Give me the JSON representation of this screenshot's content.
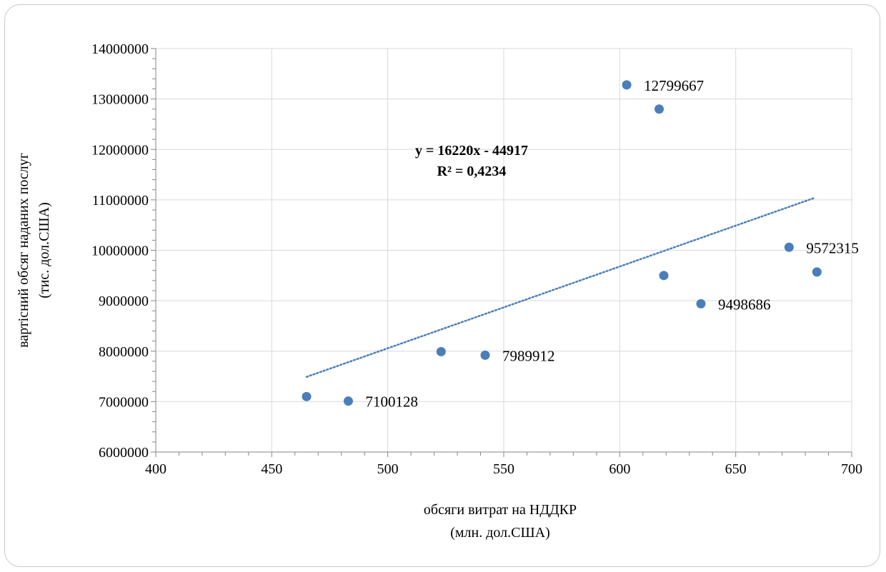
{
  "chart_data": {
    "type": "scatter",
    "title": "",
    "xlabel": [
      "обсяги витрат на НДДКР",
      "(млн. дол.США)"
    ],
    "ylabel": [
      "вартісний обсяг наданих послуг",
      "(тис. дол.США)"
    ],
    "xlim": [
      400,
      700
    ],
    "ylim": [
      6000000,
      14000000
    ],
    "x_ticks": [
      400,
      450,
      500,
      550,
      600,
      650,
      700
    ],
    "y_ticks": [
      6000000,
      7000000,
      8000000,
      9000000,
      10000000,
      11000000,
      12000000,
      13000000,
      14000000
    ],
    "x_tick_labels": [
      "400",
      "450",
      "500",
      "550",
      "600",
      "650",
      "700"
    ],
    "y_tick_labels": [
      "6000000",
      "7000000",
      "8000000",
      "9000000",
      "10000000",
      "11000000",
      "12000000",
      "13000000",
      "14000000"
    ],
    "grid": true,
    "marker_color": "#4a7ebb",
    "trendline_color": "#4a7ebb",
    "points": [
      {
        "x": 465,
        "y": 7100000
      },
      {
        "x": 483,
        "y": 7010000,
        "label": "7100128"
      },
      {
        "x": 523,
        "y": 7990000
      },
      {
        "x": 542,
        "y": 7920000,
        "label": "7989912"
      },
      {
        "x": 603,
        "y": 13280000,
        "label": "12799667"
      },
      {
        "x": 617,
        "y": 12800000
      },
      {
        "x": 619,
        "y": 9500000
      },
      {
        "x": 635,
        "y": 8940000,
        "label": "9498686"
      },
      {
        "x": 673,
        "y": 10060000,
        "label": "9572315"
      },
      {
        "x": 685,
        "y": 9570000
      }
    ],
    "trendline": {
      "type": "linear",
      "x_start": 465,
      "x_end": 684,
      "y_start": 7490000,
      "y_end": 11040000,
      "equation": "y = 16220x - 44917",
      "r_squared": "R² = 0,4234"
    }
  }
}
